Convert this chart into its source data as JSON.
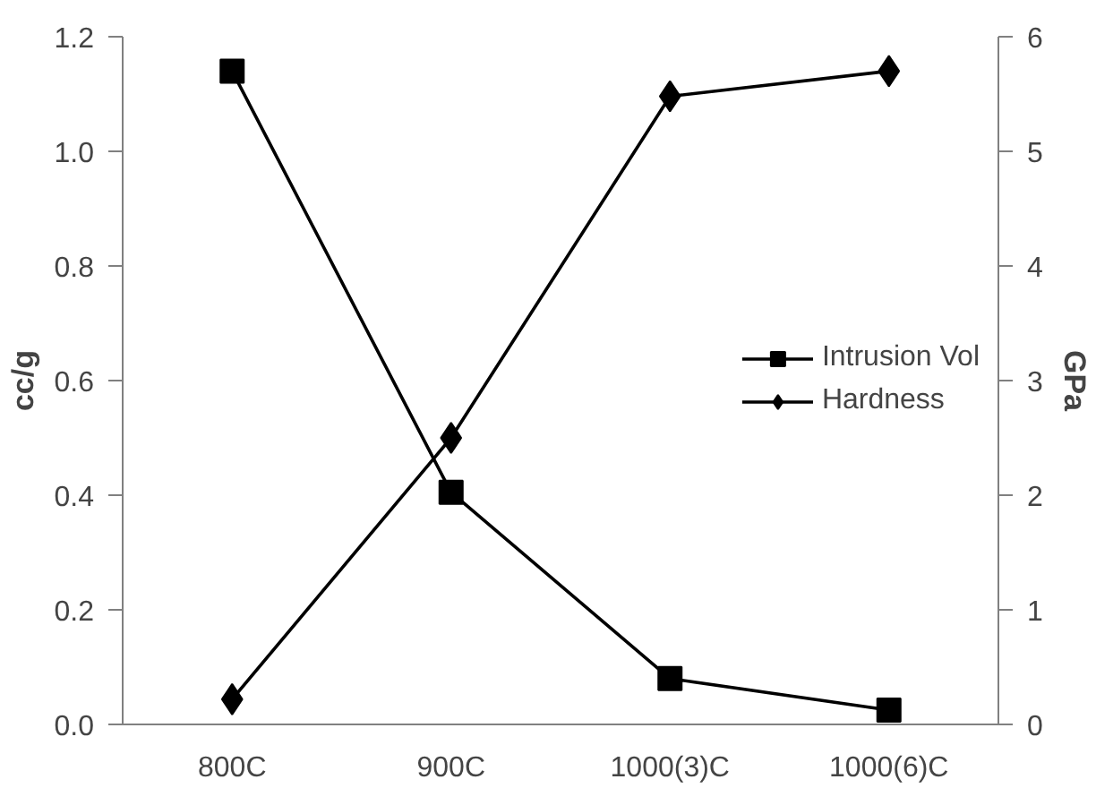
{
  "chart_data": {
    "type": "line",
    "categories": [
      "800C",
      "900C",
      "1000(3)C",
      "1000(6)C"
    ],
    "series": [
      {
        "name": "Intrusion Vol",
        "color": "#000000",
        "marker": "square",
        "values": [
          1.14,
          0.405,
          0.08,
          0.025
        ]
      },
      {
        "name": "Hardness",
        "color": "#000000",
        "marker": "diamond",
        "axis": "y2",
        "values": [
          0.22,
          2.5,
          5.48,
          5.7
        ]
      }
    ],
    "ylabel": "cc/g",
    "y2label": "GPa",
    "ylim": [
      0,
      1.2
    ],
    "yticks": [
      {
        "value": 0,
        "label": "0.0"
      },
      0.2,
      0.4,
      0.6,
      0.8,
      {
        "value": 1,
        "label": "1.0"
      },
      1.2
    ],
    "y2lim": [
      0,
      6
    ],
    "y2ticks": [
      0,
      1,
      2,
      3,
      4,
      5,
      6
    ],
    "grid": false,
    "legend": "right",
    "line_style": "solid"
  }
}
